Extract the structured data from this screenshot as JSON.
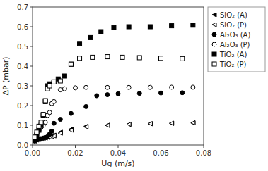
{
  "chart_data": {
    "type": "scatter",
    "x_label": "Ug (m/s)",
    "y_label": "ΔP (mbar)",
    "color": "black",
    "grid": false,
    "legend": "right",
    "xlim": [
      0,
      0.08
    ],
    "ylim": [
      0,
      0.7
    ],
    "xticks": [
      {
        "value": 0,
        "label": "0.00"
      },
      0.02,
      0.04,
      0.06,
      0.08
    ],
    "yticks": [
      {
        "value": 0,
        "label": "0.0"
      },
      0.1,
      0.2,
      0.3,
      0.4,
      0.5,
      0.6,
      0.7
    ],
    "series": [
      {
        "name": "SiO₂ (A)",
        "marker": "triangle-left",
        "x": [
          0.001,
          0.002,
          0.003,
          0.004,
          0.005,
          0.006,
          0.007,
          0.008,
          0.009,
          0.01,
          0.013,
          0.018,
          0.025,
          0.035,
          0.045,
          0.055,
          0.065,
          0.075
        ],
        "values": [
          0.025,
          0.03,
          0.032,
          0.035,
          0.038,
          0.04,
          0.042,
          0.045,
          0.048,
          0.05,
          0.065,
          0.08,
          0.095,
          0.1,
          0.105,
          0.108,
          0.11,
          0.112
        ]
      },
      {
        "name": "SiO₂ (P)",
        "marker": "triangle-left-open",
        "x": [
          0.001,
          0.002,
          0.003,
          0.004,
          0.005,
          0.006,
          0.007,
          0.008,
          0.009,
          0.01,
          0.013,
          0.018,
          0.025,
          0.035,
          0.045,
          0.055,
          0.065,
          0.075
        ],
        "values": [
          0.02,
          0.025,
          0.028,
          0.03,
          0.033,
          0.035,
          0.038,
          0.04,
          0.043,
          0.046,
          0.06,
          0.075,
          0.092,
          0.1,
          0.105,
          0.108,
          0.11,
          0.112
        ]
      },
      {
        "name": "Al₂O₃ (A)",
        "marker": "circle",
        "x": [
          0.001,
          0.002,
          0.003,
          0.004,
          0.005,
          0.006,
          0.007,
          0.008,
          0.009,
          0.01,
          0.013,
          0.018,
          0.025,
          0.03,
          0.035,
          0.04,
          0.05,
          0.06,
          0.07
        ],
        "values": [
          0.02,
          0.025,
          0.03,
          0.032,
          0.035,
          0.038,
          0.042,
          0.055,
          0.07,
          0.11,
          0.13,
          0.16,
          0.195,
          0.25,
          0.255,
          0.26,
          0.262,
          0.264,
          0.265
        ]
      },
      {
        "name": "Al₂O₃ (P)",
        "marker": "circle-open",
        "x": [
          0.001,
          0.002,
          0.003,
          0.004,
          0.005,
          0.006,
          0.007,
          0.008,
          0.009,
          0.01,
          0.013,
          0.015,
          0.02,
          0.025,
          0.035,
          0.045,
          0.055,
          0.065,
          0.075
        ],
        "values": [
          0.04,
          0.06,
          0.075,
          0.09,
          0.1,
          0.115,
          0.15,
          0.165,
          0.21,
          0.22,
          0.28,
          0.285,
          0.29,
          0.292,
          0.292,
          0.292,
          0.292,
          0.293,
          0.293
        ]
      },
      {
        "name": "TiO₂ (A)",
        "marker": "square",
        "x": [
          0.001,
          0.002,
          0.003,
          0.004,
          0.005,
          0.006,
          0.007,
          0.008,
          0.01,
          0.012,
          0.015,
          0.018,
          0.022,
          0.027,
          0.032,
          0.038,
          0.045,
          0.055,
          0.065,
          0.075
        ],
        "values": [
          0.03,
          0.05,
          0.075,
          0.1,
          0.15,
          0.22,
          0.3,
          0.31,
          0.32,
          0.335,
          0.35,
          0.41,
          0.515,
          0.545,
          0.575,
          0.595,
          0.6,
          0.6,
          0.605,
          0.608
        ]
      },
      {
        "name": "TiO₂ (P)",
        "marker": "square-open",
        "x": [
          0.001,
          0.002,
          0.003,
          0.004,
          0.005,
          0.006,
          0.007,
          0.008,
          0.01,
          0.013,
          0.018,
          0.022,
          0.028,
          0.035,
          0.042,
          0.05,
          0.06,
          0.07
        ],
        "values": [
          0.04,
          0.065,
          0.095,
          0.115,
          0.155,
          0.225,
          0.285,
          0.3,
          0.32,
          0.325,
          0.41,
          0.44,
          0.445,
          0.448,
          0.445,
          0.443,
          0.44,
          0.438
        ]
      }
    ]
  }
}
